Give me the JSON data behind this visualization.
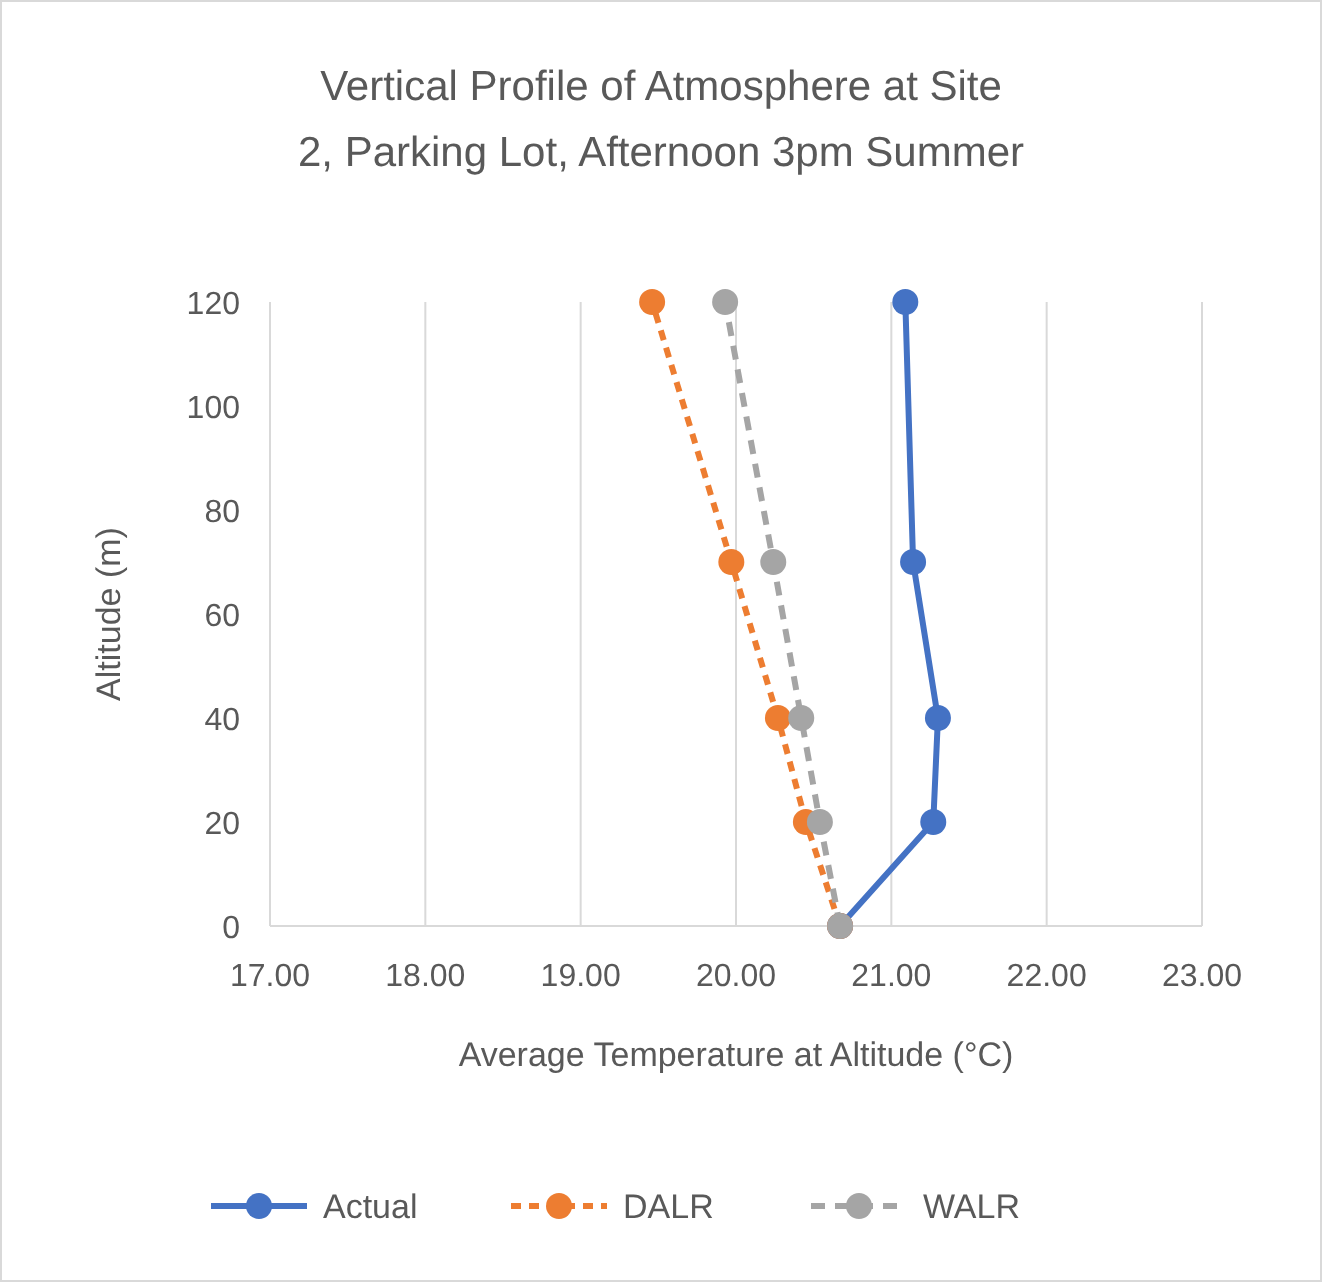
{
  "chart_data": {
    "type": "line",
    "title": "Vertical Profile of Atmosphere at Site 2, Parking Lot, Afternoon 3pm Summer",
    "xlabel": "Average Temperature at Altitude (°C)",
    "ylabel": "Altitude (m)",
    "xlim": [
      17,
      23
    ],
    "xticks": [
      {
        "value": 17,
        "label": "17.00"
      },
      {
        "value": 18,
        "label": "18.00"
      },
      {
        "value": 19,
        "label": "19.00"
      },
      {
        "value": 20,
        "label": "20.00"
      },
      {
        "value": 21,
        "label": "21.00"
      },
      {
        "value": 22,
        "label": "22.00"
      },
      {
        "value": 23,
        "label": "23.00"
      }
    ],
    "ylim": [
      0,
      120
    ],
    "yticks": [
      0,
      20,
      40,
      60,
      80,
      100,
      120
    ],
    "grid": "x",
    "legend": "bottom",
    "marker": "circle",
    "series": [
      {
        "name": "Actual",
        "color": "#4472c4",
        "line_style": "solid",
        "x": [
          20.67,
          21.27,
          21.3,
          21.14,
          21.09
        ],
        "values": [
          0,
          20,
          40,
          70,
          120
        ]
      },
      {
        "name": "DALR",
        "color": "#ed7d31",
        "line_style": "dashed",
        "x": [
          20.67,
          20.45,
          20.27,
          19.97,
          19.46
        ],
        "values": [
          0,
          20,
          40,
          70,
          120
        ]
      },
      {
        "name": "WALR",
        "color": "#a5a5a5",
        "line_style": "dashed",
        "x": [
          20.67,
          20.54,
          20.42,
          20.24,
          19.93
        ],
        "values": [
          0,
          20,
          40,
          70,
          120
        ]
      }
    ]
  }
}
